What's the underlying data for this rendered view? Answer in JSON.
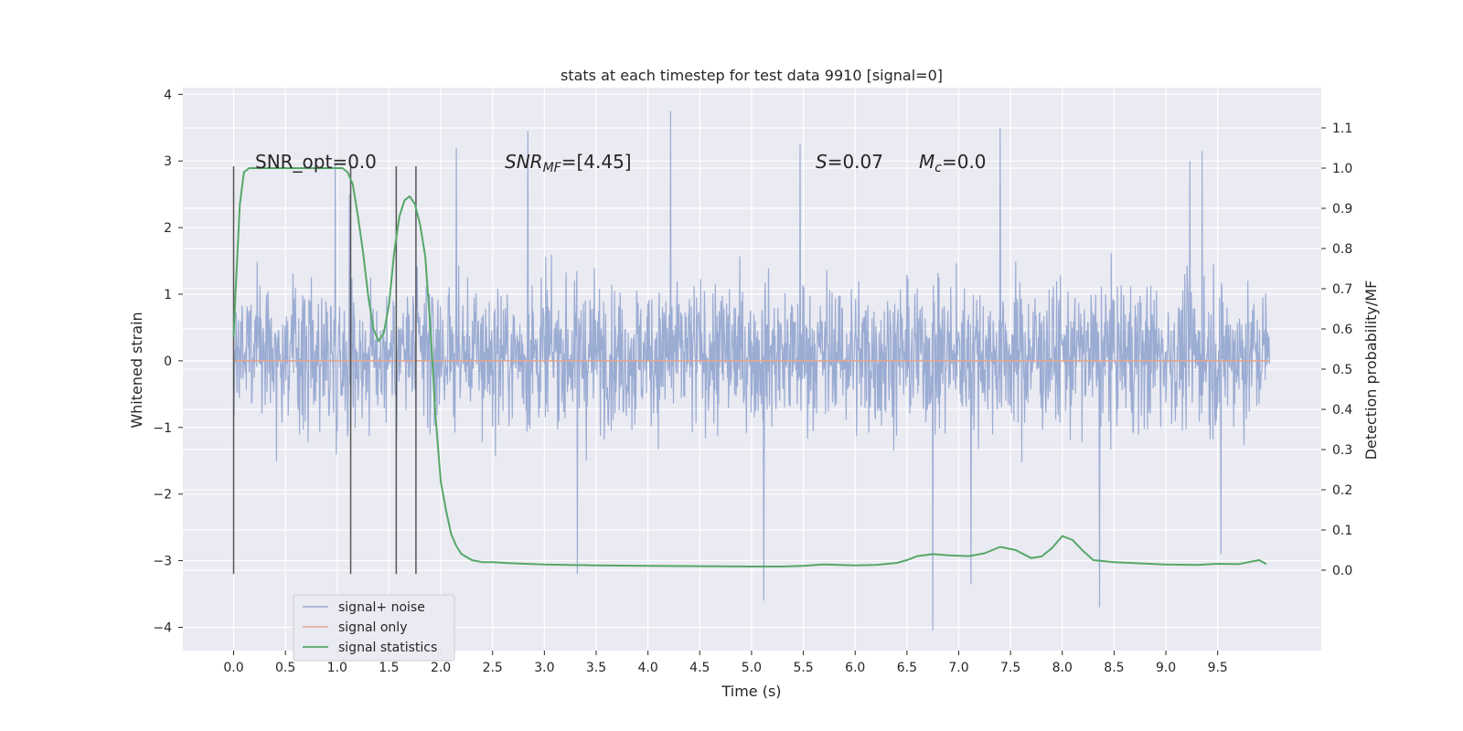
{
  "chart_data": {
    "type": "line",
    "title": "stats at each timestep for test data 9910 [signal=0]",
    "xlabel": "Time (s)",
    "ylabel": "Whitened strain",
    "ylabel_right": "Detection probability/MF",
    "xlim": [
      -0.49,
      10.5
    ],
    "ylim": [
      -4.35,
      4.1
    ],
    "ylim_right": [
      -0.2,
      1.2
    ],
    "x_ticks": [
      "0.0",
      "0.5",
      "1.0",
      "1.5",
      "2.0",
      "2.5",
      "3.0",
      "3.5",
      "4.0",
      "4.5",
      "5.0",
      "5.5",
      "6.0",
      "6.5",
      "7.0",
      "7.5",
      "8.0",
      "8.5",
      "9.0",
      "9.5"
    ],
    "y_ticks": [
      "−4",
      "−3",
      "−2",
      "−1",
      "0",
      "1",
      "2",
      "3",
      "4"
    ],
    "y_ticks_right": [
      "0.0",
      "0.1",
      "0.2",
      "0.3",
      "0.4",
      "0.5",
      "0.6",
      "0.7",
      "0.8",
      "0.9",
      "1.0",
      "1.1"
    ],
    "grid": true,
    "legend_position": "lower-left",
    "annotations": {
      "snr_opt": "SNR_opt=0.0",
      "snr_mf_main": "SNR",
      "snr_mf_sub": "MF",
      "snr_mf_value": "=[4.45]",
      "s_main": "S",
      "s_value": "=0.07",
      "mc_main": "M",
      "mc_sub": "c",
      "mc_value": "=0.0"
    },
    "vertical_markers": [
      0.0,
      1.13,
      1.57,
      1.76
    ],
    "series": [
      {
        "name": "signal+ noise",
        "color": "#97a9d1",
        "axis": "left",
        "noise_amplitude_envelope": {
          "typical_low": -1.5,
          "typical_high": 2.0,
          "max": 3.75,
          "min": -4.05
        },
        "peaks": [
          {
            "x": 0.98,
            "y": 2.95
          },
          {
            "x": 1.12,
            "y": 2.5
          },
          {
            "x": 2.15,
            "y": 3.2
          },
          {
            "x": 2.84,
            "y": 3.45
          },
          {
            "x": 4.22,
            "y": 3.75
          },
          {
            "x": 5.47,
            "y": 3.25
          },
          {
            "x": 7.4,
            "y": 3.5
          },
          {
            "x": 9.23,
            "y": 3.0
          },
          {
            "x": 9.35,
            "y": 3.15
          },
          {
            "x": 5.12,
            "y": -3.6
          },
          {
            "x": 6.75,
            "y": -4.05
          },
          {
            "x": 8.36,
            "y": -3.7
          },
          {
            "x": 7.12,
            "y": -3.35
          },
          {
            "x": 3.32,
            "y": -3.2
          },
          {
            "x": 9.53,
            "y": -2.9
          }
        ],
        "x_start": 0.0,
        "x_end": 10.0
      },
      {
        "name": "signal only",
        "color": "#e5a58c",
        "axis": "left",
        "x": [
          0.0,
          10.0
        ],
        "y": [
          0.0,
          0.0
        ]
      },
      {
        "name": "signal statistics",
        "color": "#55a868",
        "axis": "right",
        "x": [
          0.0,
          0.02,
          0.06,
          0.1,
          0.15,
          0.2,
          0.3,
          0.5,
          0.7,
          0.9,
          1.0,
          1.05,
          1.1,
          1.15,
          1.2,
          1.25,
          1.3,
          1.35,
          1.4,
          1.45,
          1.5,
          1.55,
          1.6,
          1.65,
          1.7,
          1.75,
          1.8,
          1.85,
          1.9,
          1.95,
          2.0,
          2.05,
          2.1,
          2.15,
          2.2,
          2.3,
          2.4,
          2.5,
          2.7,
          3.0,
          3.5,
          4.0,
          4.5,
          5.0,
          5.3,
          5.5,
          5.7,
          6.0,
          6.2,
          6.4,
          6.5,
          6.6,
          6.75,
          6.9,
          7.1,
          7.25,
          7.4,
          7.55,
          7.7,
          7.8,
          7.9,
          8.0,
          8.1,
          8.2,
          8.3,
          8.5,
          9.0,
          9.3,
          9.5,
          9.7,
          9.9,
          9.97
        ],
        "y": [
          0.58,
          0.7,
          0.91,
          0.99,
          1.0,
          1.0,
          1.0,
          1.0,
          1.0,
          1.0,
          1.0,
          1.0,
          0.99,
          0.96,
          0.88,
          0.79,
          0.68,
          0.6,
          0.57,
          0.59,
          0.66,
          0.79,
          0.88,
          0.92,
          0.93,
          0.91,
          0.86,
          0.78,
          0.6,
          0.38,
          0.22,
          0.15,
          0.09,
          0.06,
          0.04,
          0.025,
          0.02,
          0.02,
          0.017,
          0.014,
          0.012,
          0.011,
          0.01,
          0.009,
          0.009,
          0.011,
          0.014,
          0.012,
          0.013,
          0.018,
          0.025,
          0.035,
          0.04,
          0.037,
          0.035,
          0.042,
          0.058,
          0.05,
          0.03,
          0.034,
          0.055,
          0.085,
          0.075,
          0.048,
          0.025,
          0.02,
          0.014,
          0.013,
          0.016,
          0.015,
          0.025,
          0.015
        ]
      }
    ]
  }
}
